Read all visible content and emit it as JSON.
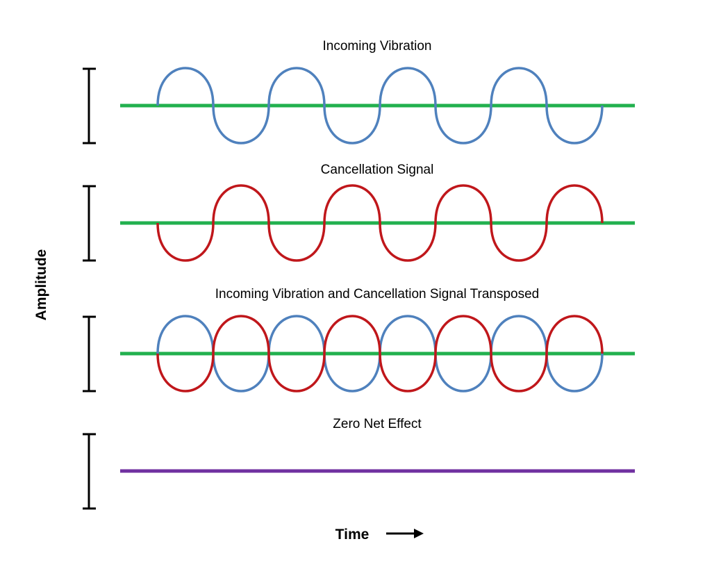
{
  "diagram": {
    "titles": [
      "Incoming Vibration",
      "Cancellation Signal",
      "Incoming Vibration and Cancellation Signal Transposed",
      "Zero Net Effect"
    ],
    "y_axis_label": "Amplitude",
    "x_axis_label": "Time"
  },
  "colors": {
    "incoming_wave": "#4f81bd",
    "cancellation_wave": "#c0171b",
    "baseline": "#22b04e",
    "net_effect_line": "#7030a0",
    "axis": "#000000"
  }
}
